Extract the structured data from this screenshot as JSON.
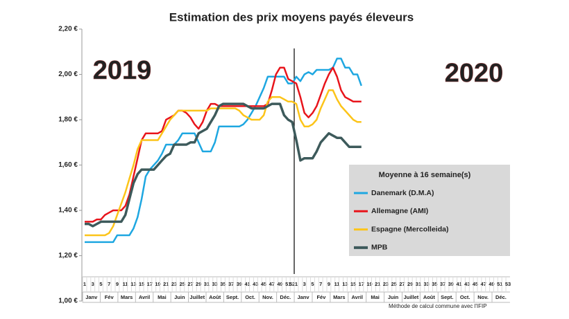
{
  "chart_data": {
    "type": "line",
    "title": "Estimation des prix moyens payés éleveurs",
    "annotations": [
      "2019",
      "2020"
    ],
    "legend_title": "Moyenne à  16 semaine(s)",
    "footnote": "Méthode de calcul commune avec l'IFIP",
    "months": [
      [
        "Janv",
        "Fév",
        "Mars",
        "Avril",
        "Mai",
        "Juin",
        "Juillet",
        "Août",
        "Sept.",
        "Oct.",
        "Nov.",
        "Déc."
      ],
      [
        "Janv",
        "Fév",
        "Mars",
        "Avril",
        "Mai",
        "Juin",
        "Juillet",
        "Août",
        "Sept.",
        "Oct.",
        "Nov.",
        "Déc."
      ]
    ],
    "categories": [
      "1",
      null,
      "3",
      null,
      "5",
      null,
      "7",
      null,
      "9",
      null,
      "11",
      null,
      "13",
      null,
      "15",
      null,
      "17",
      null,
      "19",
      null,
      "21",
      null,
      "23",
      null,
      "25",
      null,
      "27",
      null,
      "29",
      null,
      "31",
      null,
      "33",
      null,
      "35",
      null,
      "37",
      null,
      "39",
      null,
      "41",
      null,
      "43",
      null,
      "45",
      null,
      "47",
      null,
      "49",
      null,
      "51",
      "52",
      "1",
      null,
      "3",
      null,
      "5",
      null,
      "7",
      null,
      "9",
      null,
      "11",
      null,
      "13",
      null,
      "15",
      null,
      "17",
      null,
      "19",
      null,
      "21",
      null,
      "23",
      null,
      "25",
      null,
      "27",
      null,
      "29",
      null,
      "31",
      null,
      "33",
      null,
      "35",
      null,
      "37",
      null,
      "39",
      null,
      "41",
      null,
      "43",
      null,
      "45",
      null,
      "47",
      null,
      "49",
      null,
      "51",
      null,
      "53"
    ],
    "ylim": [
      1.0,
      2.2
    ],
    "yticks": [
      {
        "value": 1.0,
        "label": "1,00 €"
      },
      {
        "value": 1.2,
        "label": "1,20 €"
      },
      {
        "value": 1.4,
        "label": "1,40 €"
      },
      {
        "value": 1.6,
        "label": "1,60 €"
      },
      {
        "value": 1.8,
        "label": "1,80 €"
      },
      {
        "value": 2.0,
        "label": "2,00 €"
      },
      {
        "value": 2.2,
        "label": "2,20 €"
      }
    ],
    "series": [
      {
        "name": "Danemark (D.M.A)",
        "color": "#1ea7e1",
        "values": [
          1.26,
          1.26,
          1.26,
          1.26,
          1.26,
          1.26,
          1.26,
          1.26,
          1.29,
          1.29,
          1.29,
          1.29,
          1.32,
          1.37,
          1.45,
          1.55,
          1.58,
          1.6,
          1.62,
          1.65,
          1.69,
          1.69,
          1.69,
          1.71,
          1.74,
          1.74,
          1.74,
          1.74,
          1.7,
          1.66,
          1.66,
          1.66,
          1.7,
          1.77,
          1.77,
          1.77,
          1.77,
          1.77,
          1.77,
          1.78,
          1.8,
          1.83,
          1.86,
          1.9,
          1.94,
          1.99,
          1.99,
          1.99,
          1.99,
          1.99,
          1.96,
          1.96,
          1.99,
          1.97,
          2.0,
          2.01,
          2.0,
          2.02,
          2.02,
          2.02,
          2.02,
          2.03,
          2.07,
          2.07,
          2.03,
          2.03,
          2.0,
          2.0,
          1.95,
          null,
          null,
          null,
          null,
          null,
          null,
          null,
          null,
          null,
          null,
          null,
          null,
          null,
          null,
          null,
          null,
          null,
          null,
          null,
          null,
          null,
          null,
          null,
          null,
          null,
          null,
          null,
          null,
          null,
          null,
          null,
          null,
          null,
          null,
          null,
          null
        ]
      },
      {
        "name": "Allemagne (AMI)",
        "color": "#e8141b",
        "values": [
          1.35,
          1.35,
          1.35,
          1.36,
          1.36,
          1.38,
          1.39,
          1.4,
          1.4,
          1.4,
          1.42,
          1.47,
          1.55,
          1.63,
          1.71,
          1.74,
          1.74,
          1.74,
          1.74,
          1.75,
          1.8,
          1.81,
          1.82,
          1.84,
          1.84,
          1.83,
          1.81,
          1.78,
          1.76,
          1.79,
          1.84,
          1.87,
          1.87,
          1.86,
          1.86,
          1.86,
          1.86,
          1.86,
          1.86,
          1.86,
          1.86,
          1.86,
          1.86,
          1.86,
          1.86,
          1.87,
          1.93,
          2.0,
          2.03,
          2.03,
          1.98,
          1.97,
          1.96,
          1.9,
          1.83,
          1.81,
          1.83,
          1.86,
          1.91,
          1.96,
          2.0,
          2.03,
          1.99,
          1.93,
          1.9,
          1.89,
          1.88,
          1.88,
          1.88,
          null,
          null,
          null,
          null,
          null,
          null,
          null,
          null,
          null,
          null,
          null,
          null,
          null,
          null,
          null,
          null,
          null,
          null,
          null,
          null,
          null,
          null,
          null,
          null,
          null,
          null,
          null,
          null,
          null,
          null,
          null,
          null,
          null,
          null,
          null,
          null
        ]
      },
      {
        "name": "Espagne (Mercolleida)",
        "color": "#fcc419",
        "values": [
          1.29,
          1.29,
          1.29,
          1.29,
          1.29,
          1.29,
          1.3,
          1.33,
          1.38,
          1.43,
          1.48,
          1.54,
          1.6,
          1.67,
          1.71,
          1.71,
          1.71,
          1.71,
          1.71,
          1.74,
          1.77,
          1.8,
          1.82,
          1.84,
          1.84,
          1.84,
          1.84,
          1.84,
          1.84,
          1.84,
          1.84,
          1.85,
          1.85,
          1.85,
          1.85,
          1.85,
          1.85,
          1.85,
          1.84,
          1.82,
          1.81,
          1.8,
          1.8,
          1.8,
          1.82,
          1.88,
          1.9,
          1.9,
          1.9,
          1.89,
          1.88,
          1.88,
          1.87,
          1.8,
          1.77,
          1.77,
          1.78,
          1.8,
          1.85,
          1.89,
          1.93,
          1.93,
          1.89,
          1.86,
          1.84,
          1.82,
          1.8,
          1.79,
          1.79,
          null,
          null,
          null,
          null,
          null,
          null,
          null,
          null,
          null,
          null,
          null,
          null,
          null,
          null,
          null,
          null,
          null,
          null,
          null,
          null,
          null,
          null,
          null,
          null,
          null,
          null,
          null,
          null,
          null,
          null,
          null,
          null,
          null,
          null,
          null,
          null
        ]
      },
      {
        "name": "MPB",
        "color": "#3d5a5b",
        "values": [
          1.34,
          1.34,
          1.33,
          1.34,
          1.35,
          1.35,
          1.35,
          1.35,
          1.35,
          1.35,
          1.38,
          1.45,
          1.52,
          1.56,
          1.58,
          1.58,
          1.58,
          1.58,
          1.6,
          1.62,
          1.64,
          1.65,
          1.69,
          1.69,
          1.69,
          1.69,
          1.7,
          1.7,
          1.74,
          1.75,
          1.76,
          1.79,
          1.82,
          1.86,
          1.87,
          1.87,
          1.87,
          1.87,
          1.87,
          1.87,
          1.86,
          1.85,
          1.85,
          1.85,
          1.85,
          1.86,
          1.87,
          1.87,
          1.87,
          1.82,
          1.8,
          1.79,
          1.71,
          1.62,
          1.63,
          1.63,
          1.63,
          1.66,
          1.7,
          1.72,
          1.74,
          1.73,
          1.72,
          1.72,
          1.7,
          1.68,
          1.68,
          1.68,
          1.68,
          null,
          null,
          null,
          null,
          null,
          null,
          null,
          null,
          null,
          null,
          null,
          null,
          null,
          null,
          null,
          null,
          null,
          null,
          null,
          null,
          null,
          null,
          null,
          null,
          null,
          null,
          null,
          null,
          null,
          null,
          null,
          null,
          null,
          null,
          null,
          null
        ]
      }
    ]
  }
}
